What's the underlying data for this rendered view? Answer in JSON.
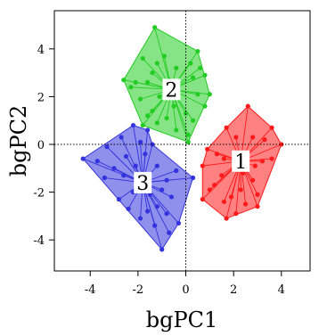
{
  "chart_data": {
    "type": "scatter",
    "xlabel": "bgPC1",
    "ylabel": "bgPC2",
    "xlim": [
      -5.5,
      5.2
    ],
    "ylim": [
      -5.3,
      5.6
    ],
    "xticks": [
      -4,
      -2,
      0,
      2,
      4
    ],
    "yticks": [
      -4,
      -2,
      0,
      2,
      4
    ],
    "reference_lines": {
      "x": 0,
      "y": 0,
      "style": "dotted"
    },
    "groups": [
      {
        "label": "1",
        "color": "#ff1a1a",
        "centroid": [
          2.3,
          -0.7
        ],
        "hull": [
          [
            2.6,
            1.6
          ],
          [
            3.6,
            0.7
          ],
          [
            4.0,
            0.0
          ],
          [
            3.0,
            -2.6
          ],
          [
            1.7,
            -3.1
          ],
          [
            0.7,
            -2.3
          ],
          [
            0.7,
            -0.9
          ],
          [
            0.9,
            -0.2
          ],
          [
            1.7,
            0.7
          ]
        ],
        "points": [
          [
            2.6,
            1.6
          ],
          [
            3.6,
            0.7
          ],
          [
            4.0,
            0.0
          ],
          [
            3.0,
            -2.6
          ],
          [
            1.7,
            -3.1
          ],
          [
            0.7,
            -2.3
          ],
          [
            0.7,
            -0.9
          ],
          [
            0.9,
            -0.2
          ],
          [
            1.7,
            0.7
          ],
          [
            3.3,
            0.2
          ],
          [
            2.8,
            0.3
          ],
          [
            2.1,
            0.3
          ],
          [
            1.3,
            -0.4
          ],
          [
            1.6,
            -0.6
          ],
          [
            3.6,
            -0.6
          ],
          [
            3.2,
            -0.7
          ],
          [
            2.9,
            -0.9
          ],
          [
            1.5,
            -1.3
          ],
          [
            2.8,
            -1.5
          ],
          [
            1.2,
            -1.7
          ],
          [
            2.3,
            -1.9
          ],
          [
            3.0,
            -2.1
          ],
          [
            1.9,
            -2.2
          ],
          [
            1.6,
            -2.4
          ],
          [
            2.5,
            -2.5
          ],
          [
            1.0,
            -1.9
          ],
          [
            2.1,
            -2.9
          ],
          [
            2.4,
            -1.2
          ]
        ]
      },
      {
        "label": "2",
        "color": "#22cc22",
        "centroid": [
          -0.6,
          2.3
        ],
        "hull": [
          [
            -1.3,
            4.9
          ],
          [
            0.5,
            3.9
          ],
          [
            1.0,
            2.1
          ],
          [
            0.1,
            0.1
          ],
          [
            -1.8,
            0.8
          ],
          [
            -2.6,
            2.7
          ]
        ],
        "points": [
          [
            -1.3,
            4.9
          ],
          [
            0.5,
            3.9
          ],
          [
            1.0,
            2.1
          ],
          [
            0.1,
            0.1
          ],
          [
            -1.8,
            0.8
          ],
          [
            -2.6,
            2.7
          ],
          [
            -1.8,
            3.6
          ],
          [
            -1.2,
            3.4
          ],
          [
            0.2,
            3.4
          ],
          [
            -0.4,
            3.2
          ],
          [
            -1.4,
            3.0
          ],
          [
            0.6,
            3.2
          ],
          [
            -2.1,
            2.6
          ],
          [
            -1.6,
            2.6
          ],
          [
            0.3,
            2.8
          ],
          [
            0.8,
            2.9
          ],
          [
            -0.3,
            2.4
          ],
          [
            -2.3,
            2.4
          ],
          [
            -1.1,
            2.0
          ],
          [
            0.5,
            2.1
          ],
          [
            -1.9,
            1.9
          ],
          [
            -0.5,
            1.6
          ],
          [
            0.8,
            1.6
          ],
          [
            -1.4,
            1.4
          ],
          [
            0.0,
            1.3
          ],
          [
            -0.8,
            1.1
          ],
          [
            -1.6,
            1.2
          ],
          [
            0.3,
            1.0
          ],
          [
            -0.4,
            0.6
          ],
          [
            -1.2,
            0.9
          ],
          [
            0.1,
            0.4
          ],
          [
            -0.7,
            2.7
          ],
          [
            -0.9,
            3.7
          ]
        ]
      },
      {
        "label": "3",
        "color": "#3333dd",
        "centroid": [
          -1.8,
          -1.6
        ],
        "hull": [
          [
            -2.2,
            0.8
          ],
          [
            -1.6,
            0.6
          ],
          [
            -1.4,
            0.0
          ],
          [
            0.3,
            -1.4
          ],
          [
            -0.3,
            -3.3
          ],
          [
            -1.0,
            -4.4
          ],
          [
            -4.3,
            -0.6
          ]
        ],
        "points": [
          [
            -2.2,
            0.8
          ],
          [
            -1.6,
            0.6
          ],
          [
            -1.4,
            0.0
          ],
          [
            0.3,
            -1.4
          ],
          [
            -0.3,
            -3.3
          ],
          [
            -1.0,
            -4.4
          ],
          [
            -4.3,
            -0.6
          ],
          [
            -2.7,
            0.3
          ],
          [
            -1.9,
            0.1
          ],
          [
            -3.3,
            -0.1
          ],
          [
            -2.5,
            -0.5
          ],
          [
            -1.7,
            -0.4
          ],
          [
            -3.7,
            -0.7
          ],
          [
            -2.1,
            -0.9
          ],
          [
            -1.2,
            -0.9
          ],
          [
            -0.4,
            -1.1
          ],
          [
            -3.0,
            -1.0
          ],
          [
            -2.6,
            -1.3
          ],
          [
            -0.8,
            -1.5
          ],
          [
            -3.4,
            -1.4
          ],
          [
            -1.0,
            -1.9
          ],
          [
            -2.2,
            -2.0
          ],
          [
            -0.6,
            -2.2
          ],
          [
            -1.5,
            -2.1
          ],
          [
            -2.8,
            -2.3
          ],
          [
            -1.2,
            -2.6
          ],
          [
            -0.8,
            -2.9
          ],
          [
            -1.9,
            -3.1
          ],
          [
            -1.3,
            -3.4
          ],
          [
            -0.7,
            -3.7
          ],
          [
            -1.6,
            -2.8
          ],
          [
            -2.4,
            -2.7
          ]
        ]
      }
    ]
  }
}
